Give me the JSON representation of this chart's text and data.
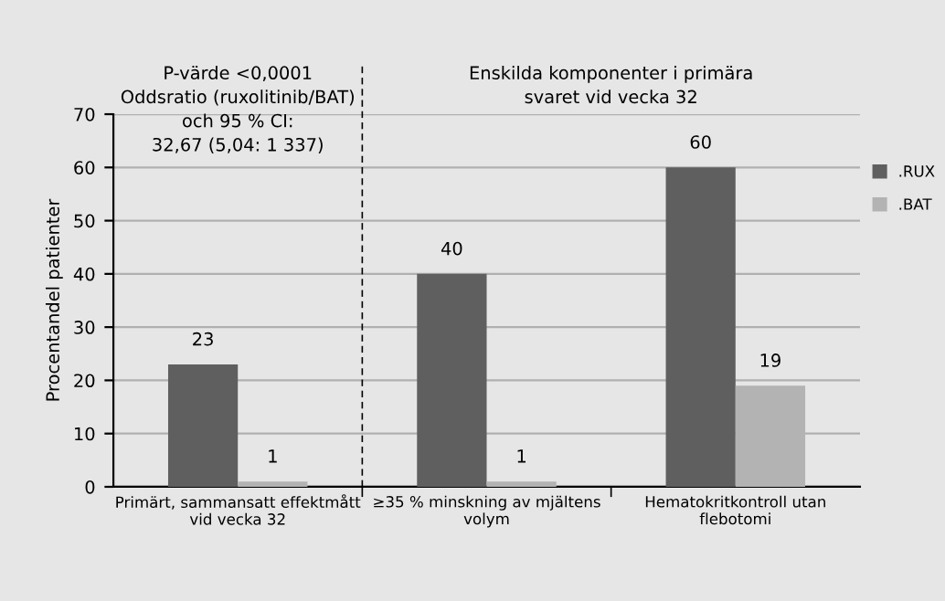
{
  "chart_data": {
    "type": "bar",
    "ylabel": "Procentandel patienter",
    "categories": [
      "Primärt, sammansatt effektmått\nvid vecka 32",
      "≥35 % minskning av mjältens\nvolym",
      "Hematokritkontroll utan\nflebotomi"
    ],
    "series": [
      {
        "name": ".RUX",
        "color": "#5f5f5f",
        "values": [
          23,
          40,
          60
        ]
      },
      {
        "name": ".BAT",
        "color": "#b3b3b3",
        "values": [
          1,
          1,
          19
        ]
      }
    ],
    "ylim": [
      0,
      70
    ],
    "yticks": [
      0,
      10,
      20,
      30,
      40,
      50,
      60,
      70
    ],
    "grid": "y",
    "legend": "right",
    "data_labels": true,
    "annotations": [
      "P-värde <0,0001\nOddsratio (ruxolitinib/BAT)\noch 95 % CI:\n32,67 (5,04: 1 337)",
      "Enskilda komponenter i primära\nsvaret vid vecka 32"
    ]
  }
}
